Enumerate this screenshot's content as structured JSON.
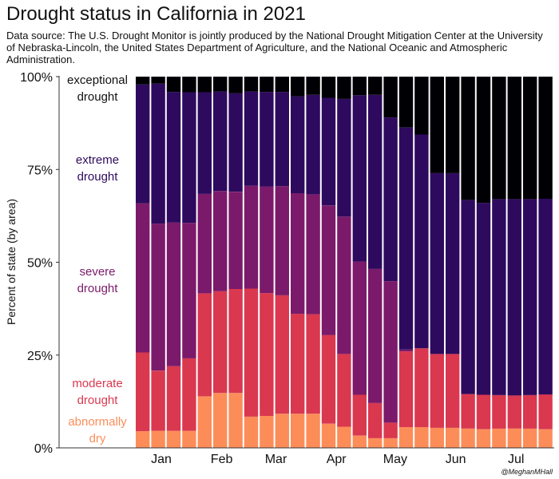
{
  "title": "Drought status in California in 2021",
  "subtitle": "Data source: The U.S. Drought Monitor is jointly produced by the National Drought Mitigation Center at the University of Nebraska-Lincoln, the United States Department of Agriculture, and the National Oceanic and Atmospheric Administration.",
  "credit": "@MeghanMHall",
  "chart_data": {
    "type": "bar",
    "stacked": true,
    "ylabel": "Percent of state (by area)",
    "ylim": [
      0,
      100
    ],
    "yticks": [
      {
        "value": 0,
        "label": "0%"
      },
      {
        "value": 25,
        "label": "25%"
      },
      {
        "value": 50,
        "label": "50%"
      },
      {
        "value": 75,
        "label": "75%"
      },
      {
        "value": 100,
        "label": "100%"
      }
    ],
    "xticks": [
      {
        "week": 1.2,
        "label": "Jan"
      },
      {
        "week": 5.1,
        "label": "Feb"
      },
      {
        "week": 8.6,
        "label": "Mar"
      },
      {
        "week": 12.5,
        "label": "Apr"
      },
      {
        "week": 16.3,
        "label": "May"
      },
      {
        "week": 20.2,
        "label": "Jun"
      },
      {
        "week": 24.1,
        "label": "Jul"
      }
    ],
    "series": [
      {
        "name": "abnormally dry",
        "label_lines": [
          "abnormally",
          "dry"
        ],
        "color": "#fc8d59",
        "values": [
          4.5,
          4.6,
          4.6,
          4.6,
          13.9,
          14.8,
          14.8,
          8.4,
          8.6,
          9.2,
          9.2,
          9.2,
          6.5,
          5.7,
          3.3,
          2.6,
          2.6,
          5.6,
          5.6,
          5.4,
          5.4,
          5.2,
          5.0,
          5.2,
          5.2,
          5.2,
          5.0
        ]
      },
      {
        "name": "moderate drought",
        "label_lines": [
          "moderate",
          "drought"
        ],
        "color": "#d9384f",
        "values": [
          21.2,
          16.2,
          17.4,
          19.5,
          27.7,
          27.4,
          28.0,
          34.5,
          33.1,
          31.9,
          26.9,
          26.8,
          23.9,
          19.6,
          11.0,
          9.5,
          4.2,
          20.4,
          21.2,
          19.9,
          19.9,
          9.3,
          9.3,
          9.0,
          8.9,
          9.0,
          9.4
        ]
      },
      {
        "name": "severe drought",
        "label_lines": [
          "severe",
          "drought"
        ],
        "color": "#7b1a6a",
        "values": [
          40.2,
          39.6,
          38.7,
          36.5,
          26.8,
          27.0,
          26.2,
          27.7,
          28.7,
          29.4,
          32.5,
          32.3,
          34.9,
          37.0,
          35.9,
          36.1,
          38.1,
          0.5,
          0.0,
          0.0,
          0.0,
          0.0,
          0.0,
          0.0,
          0.0,
          0.0,
          0.0
        ]
      },
      {
        "name": "extreme drought",
        "label_lines": [
          "extreme",
          "drought"
        ],
        "color": "#2e0a5e",
        "values": [
          32.0,
          37.7,
          35.2,
          35.2,
          27.4,
          26.8,
          26.5,
          25.4,
          25.5,
          25.4,
          26.1,
          26.8,
          29.0,
          31.7,
          44.8,
          46.9,
          44.1,
          59.8,
          57.6,
          48.7,
          48.7,
          52.3,
          51.7,
          52.8,
          52.9,
          52.8,
          52.7
        ]
      },
      {
        "name": "exceptional drought",
        "label_lines": [
          "exceptional",
          "drought"
        ],
        "color": "#000004",
        "values": [
          2.1,
          1.9,
          4.1,
          4.2,
          4.2,
          4.0,
          4.5,
          4.0,
          4.1,
          4.1,
          5.3,
          4.9,
          5.7,
          6.0,
          5.0,
          4.9,
          11.0,
          13.7,
          15.6,
          26.0,
          26.0,
          33.2,
          34.0,
          33.0,
          33.0,
          33.0,
          32.9
        ]
      }
    ]
  }
}
